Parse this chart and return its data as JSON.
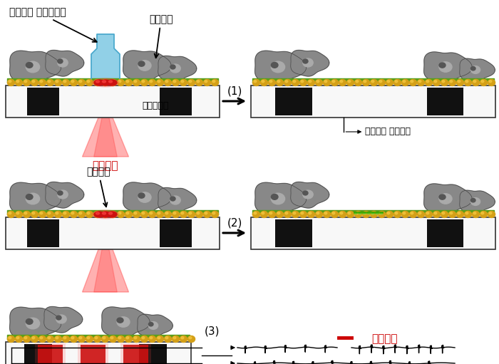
{
  "background_color": "#ffffff",
  "panel1_label": "(1)",
  "panel2_label": "(2)",
  "panel3_label": "(3)",
  "text_agarose": "아가로즈 하이드로겔",
  "text_neuron": "신경세포",
  "text_microelectrode": "미세전극칩",
  "text_nir": "근적외선",
  "text_nir2": "근적외선",
  "text_spine": "신경돌기",
  "text_signal": "신경세포 전기신호",
  "gold_color": "#D4A017",
  "gold_highlight": "#F5C842",
  "green_color": "#5a9e1a",
  "chip_bg": "#f8f8f8",
  "chip_border": "#333333",
  "electrode_black": "#111111",
  "red_electrode": "#cc1111",
  "red_glow": "#ff4444",
  "blue_gel": "#7ec8e3",
  "blue_gel_dark": "#4aa8cc",
  "neuron_body": "#888888",
  "neuron_light": "#aaaaaa",
  "neuron_dark": "#555555",
  "neuron_border": "#444444",
  "ir_color": "#ff2222",
  "ir_alpha": 0.35,
  "arrow_color": "#1a1a1a",
  "text_color": "#000000",
  "red_text_color": "#cc0000"
}
